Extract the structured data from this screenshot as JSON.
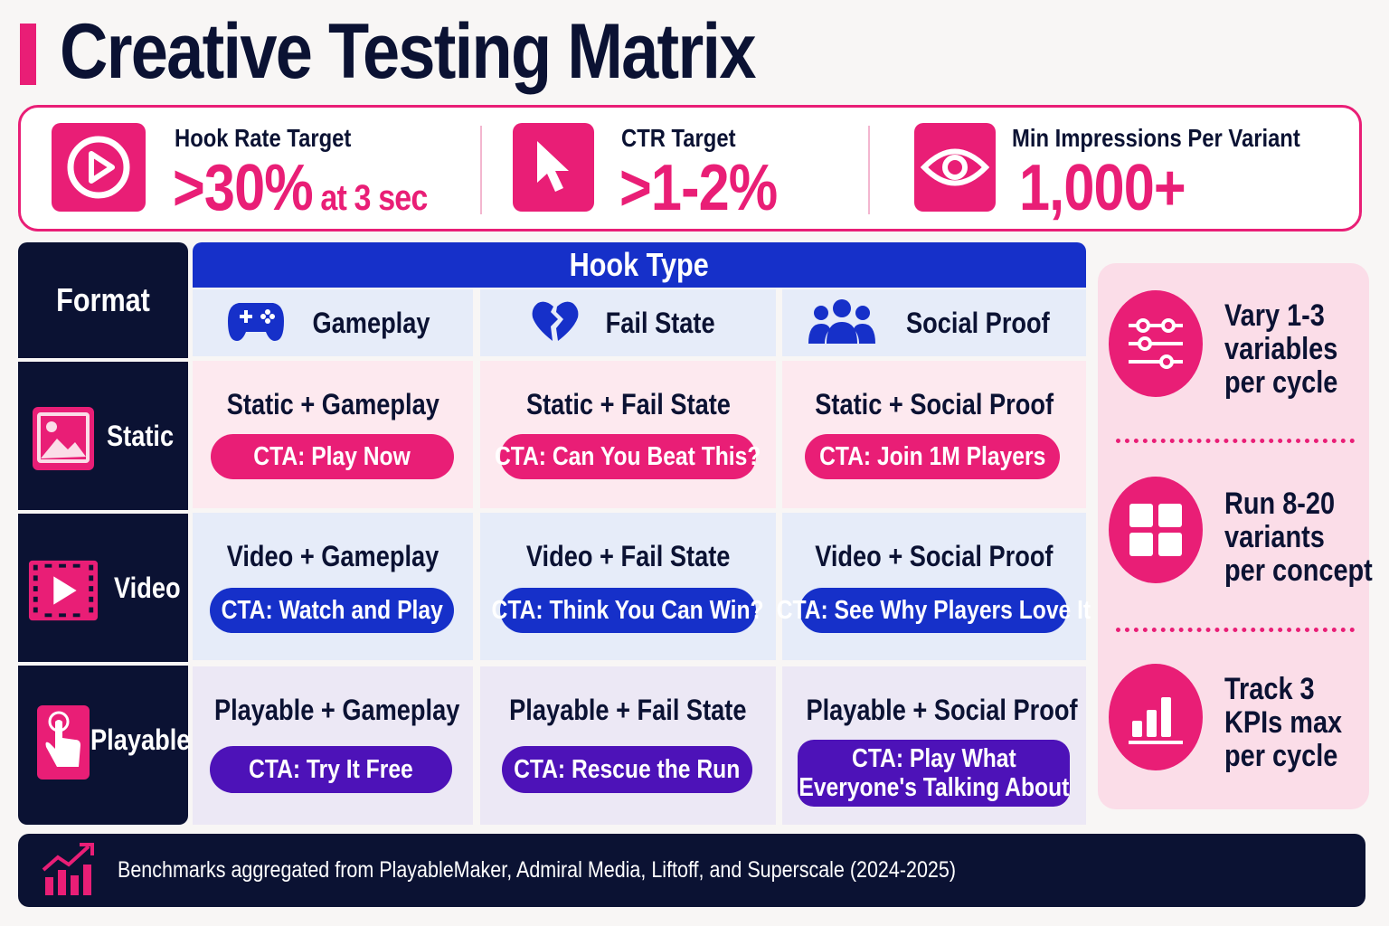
{
  "title": "Creative Testing Matrix",
  "colors": {
    "accent": "#e91e76",
    "navy": "#0b1233",
    "blue": "#1630c9",
    "purple": "#4d12b8"
  },
  "kpis": [
    {
      "label": "Hook Rate Target",
      "value": ">30%",
      "suffix": " at 3 sec",
      "icon": "play-circle-icon"
    },
    {
      "label": "CTR Target",
      "value": ">1-2%",
      "suffix": "",
      "icon": "cursor-icon"
    },
    {
      "label": "Min Impressions Per Variant",
      "value": "1,000+",
      "suffix": "",
      "icon": "eye-icon"
    }
  ],
  "matrix": {
    "format_header": "Format",
    "hook_header": "Hook Type",
    "hook_types": [
      {
        "label": "Gameplay",
        "icon": "gamepad-icon"
      },
      {
        "label": "Fail State",
        "icon": "broken-heart-icon"
      },
      {
        "label": "Social Proof",
        "icon": "people-icon"
      }
    ],
    "formats": [
      {
        "label": "Static",
        "icon": "image-icon"
      },
      {
        "label": "Video",
        "icon": "film-play-icon"
      },
      {
        "label": "Playable",
        "icon": "tap-hand-icon"
      }
    ],
    "cells": [
      [
        {
          "title": "Static + Gameplay",
          "cta": "CTA: Play Now"
        },
        {
          "title": "Static + Fail State",
          "cta": "CTA: Can You Beat This?"
        },
        {
          "title": "Static + Social Proof",
          "cta": "CTA: Join 1M Players"
        }
      ],
      [
        {
          "title": "Video + Gameplay",
          "cta": "CTA: Watch and Play"
        },
        {
          "title": "Video + Fail State",
          "cta": "CTA: Think You Can Win?"
        },
        {
          "title": "Video + Social Proof",
          "cta": "CTA: See Why Players Love It"
        }
      ],
      [
        {
          "title": "Playable + Gameplay",
          "cta": "CTA: Try It Free"
        },
        {
          "title": "Playable + Fail State",
          "cta": "CTA: Rescue the Run"
        },
        {
          "title": "Playable + Social Proof",
          "cta_lines": [
            "CTA: Play What",
            "Everyone's Talking About"
          ]
        }
      ]
    ]
  },
  "tips": [
    {
      "lines": [
        "Vary 1-3",
        "variables",
        "per cycle"
      ],
      "icon": "sliders-icon"
    },
    {
      "lines": [
        "Run 8-20",
        "variants",
        "per concept"
      ],
      "icon": "grid-icon"
    },
    {
      "lines": [
        "Track 3",
        "KPIs max",
        "per cycle"
      ],
      "icon": "bar-chart-icon"
    }
  ],
  "footer": {
    "text": "Benchmarks aggregated from PlayableMaker, Admiral Media, Liftoff, and Superscale (2024-2025)",
    "icon": "trend-chart-icon"
  }
}
